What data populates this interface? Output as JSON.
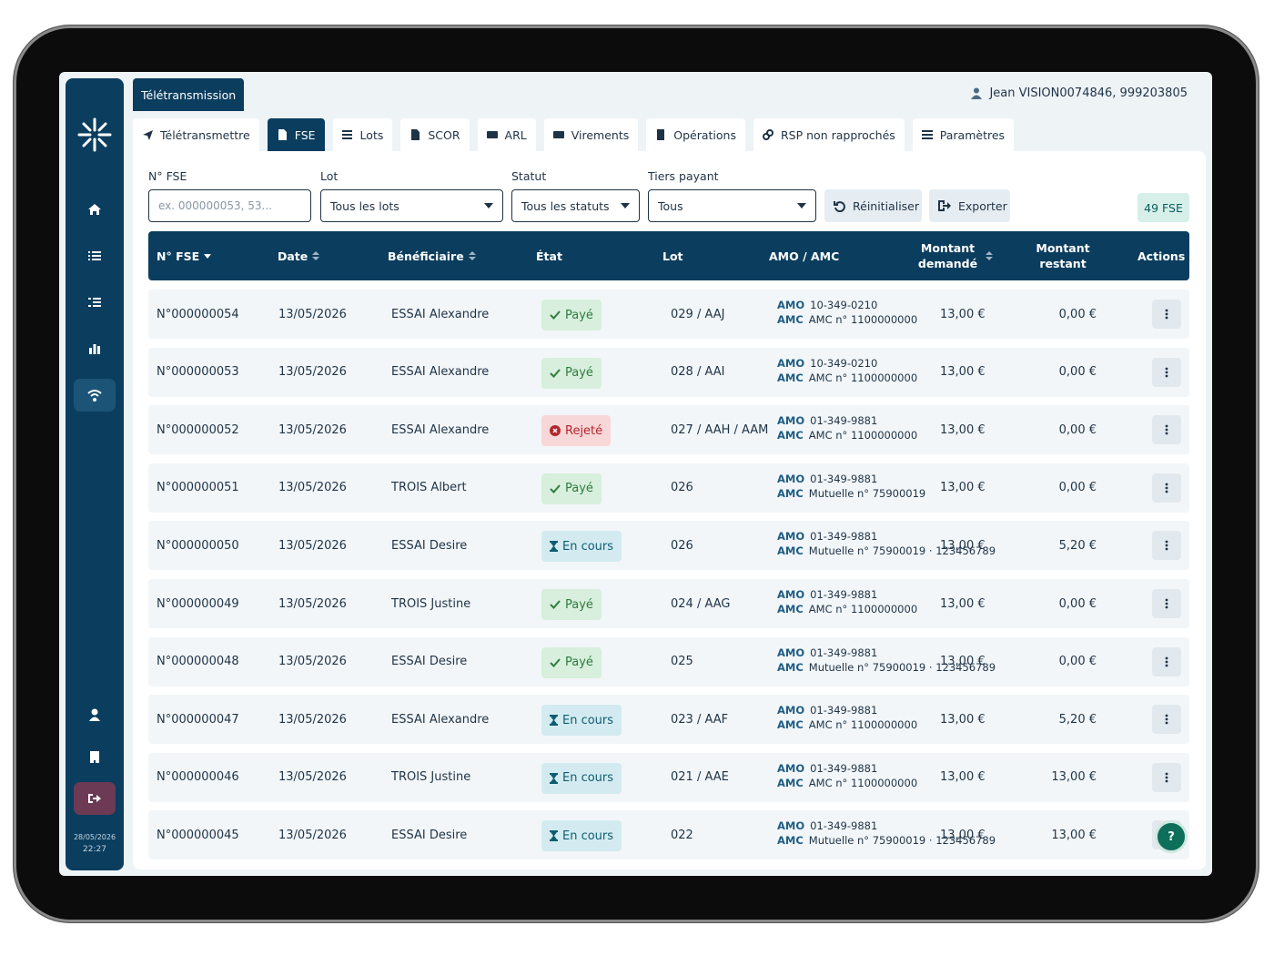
{
  "header": {
    "title": "Télétransmission",
    "user": "Jean VISION0074846, 999203805"
  },
  "sidebar": {
    "date": "28/05/2026",
    "time": "22:27"
  },
  "tabs": [
    "Télétransmettre",
    "FSE",
    "Lots",
    "SCOR",
    "ARL",
    "Virements",
    "Opérations",
    "RSP non rapprochés",
    "Paramètres"
  ],
  "active_tab": 1,
  "filters": {
    "fields": [
      {
        "label": "N° FSE",
        "placeholder": "ex. 000000053, 53..."
      },
      {
        "label": "Lot",
        "value": "Tous les lots"
      },
      {
        "label": "Statut",
        "value": "Tous les statuts"
      },
      {
        "label": "Tiers payant",
        "value": "Tous"
      }
    ],
    "buttons": [
      "Réinitialiser",
      "Exporter"
    ],
    "count": "49 FSE"
  },
  "table": {
    "columns": [
      "N° FSE",
      "Date",
      "Bénéficiaire",
      "État",
      "Lot",
      "AMO / AMC",
      "Montant demandé",
      "Montant restant",
      "Actions"
    ],
    "amo_label": "AMO",
    "amc_label": "AMC",
    "rows": [
      {
        "id": "N°000000054",
        "date": "13/05/2026",
        "beneficiary": "ESSAI Alexandre",
        "status": "Payé",
        "tone": "green",
        "lot": "029 / AAJ",
        "amo": "10-349-0210",
        "amc": "AMC n° 1100000000",
        "requested": "13,00 €",
        "remaining": "0,00 €"
      },
      {
        "id": "N°000000053",
        "date": "13/05/2026",
        "beneficiary": "ESSAI Alexandre",
        "status": "Payé",
        "tone": "green",
        "lot": "028 / AAI",
        "amo": "10-349-0210",
        "amc": "AMC n° 1100000000",
        "requested": "13,00 €",
        "remaining": "0,00 €"
      },
      {
        "id": "N°000000052",
        "date": "13/05/2026",
        "beneficiary": "ESSAI Alexandre",
        "status": "Rejeté",
        "tone": "red",
        "lot": "027 / AAH / AAM",
        "amo": "01-349-9881",
        "amc": "AMC n° 1100000000",
        "requested": "13,00 €",
        "remaining": "0,00 €"
      },
      {
        "id": "N°000000051",
        "date": "13/05/2026",
        "beneficiary": "TROIS Albert",
        "status": "Payé",
        "tone": "green",
        "lot": "026",
        "amo": "01-349-9881",
        "amc": "Mutuelle n° 75900019",
        "requested": "13,00 €",
        "remaining": "0,00 €"
      },
      {
        "id": "N°000000050",
        "date": "13/05/2026",
        "beneficiary": "ESSAI Desire",
        "status": "En cours",
        "tone": "blue",
        "lot": "026",
        "amo": "01-349-9881",
        "amc": "Mutuelle n° 75900019 · 123456789",
        "requested": "13,00 €",
        "remaining": "5,20 €"
      },
      {
        "id": "N°000000049",
        "date": "13/05/2026",
        "beneficiary": "TROIS Justine",
        "status": "Payé",
        "tone": "green",
        "lot": "024 / AAG",
        "amo": "01-349-9881",
        "amc": "AMC n° 1100000000",
        "requested": "13,00 €",
        "remaining": "0,00 €"
      },
      {
        "id": "N°000000048",
        "date": "13/05/2026",
        "beneficiary": "ESSAI Desire",
        "status": "Payé",
        "tone": "green",
        "lot": "025",
        "amo": "01-349-9881",
        "amc": "Mutuelle n° 75900019 · 123456789",
        "requested": "13,00 €",
        "remaining": "0,00 €"
      },
      {
        "id": "N°000000047",
        "date": "13/05/2026",
        "beneficiary": "ESSAI Alexandre",
        "status": "En cours",
        "tone": "blue",
        "lot": "023 / AAF",
        "amo": "01-349-9881",
        "amc": "AMC n° 1100000000",
        "requested": "13,00 €",
        "remaining": "5,20 €"
      },
      {
        "id": "N°000000046",
        "date": "13/05/2026",
        "beneficiary": "TROIS Justine",
        "status": "En cours",
        "tone": "blue",
        "lot": "021 / AAE",
        "amo": "01-349-9881",
        "amc": "AMC n° 1100000000",
        "requested": "13,00 €",
        "remaining": "13,00 €"
      },
      {
        "id": "N°000000045",
        "date": "13/05/2026",
        "beneficiary": "ESSAI Desire",
        "status": "En cours",
        "tone": "blue",
        "lot": "022",
        "amo": "01-349-9881",
        "amc": "Mutuelle n° 75900019 · 123456789",
        "requested": "13,00 €",
        "remaining": "13,00 €"
      }
    ]
  }
}
